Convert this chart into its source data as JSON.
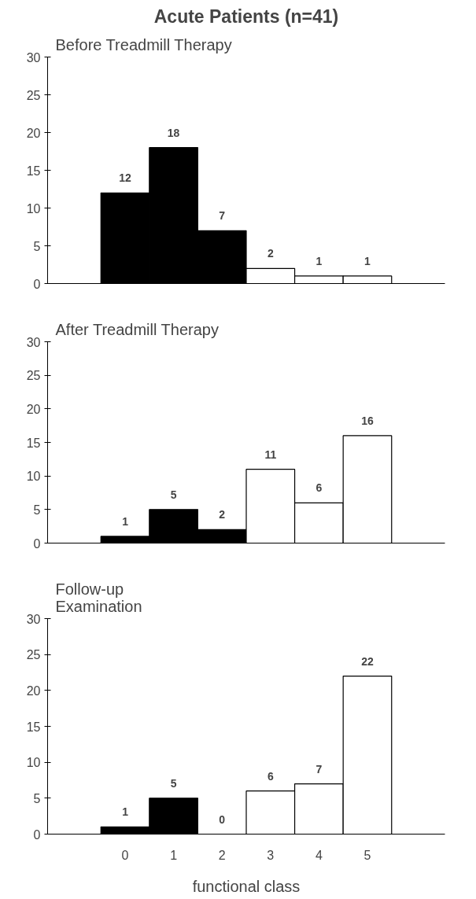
{
  "chart_data": [
    {
      "type": "bar",
      "title": "Acute Patients (n=41)",
      "subtitle": "Before Treadmill Therapy",
      "categories": [
        "0",
        "1",
        "2",
        "3",
        "4",
        "5"
      ],
      "values": [
        12,
        18,
        7,
        2,
        1,
        1
      ],
      "colors": [
        "#000000",
        "#000000",
        "#000000",
        "#ffffff",
        "#ffffff",
        "#ffffff"
      ],
      "ylim": [
        0,
        30
      ],
      "yticks": [
        0,
        5,
        10,
        15,
        20,
        25,
        30
      ],
      "data_labels": true,
      "tick_labels": "y",
      "grid": false
    },
    {
      "type": "bar",
      "title": "After Treadmill Therapy",
      "categories": [
        "0",
        "1",
        "2",
        "3",
        "4",
        "5"
      ],
      "values": [
        1,
        5,
        2,
        11,
        6,
        16
      ],
      "colors": [
        "#000000",
        "#000000",
        "#000000",
        "#ffffff",
        "#ffffff",
        "#ffffff"
      ],
      "ylim": [
        0,
        30
      ],
      "yticks": [
        0,
        5,
        10,
        15,
        20,
        25,
        30
      ],
      "data_labels": true,
      "tick_labels": "y",
      "grid": false
    },
    {
      "type": "bar",
      "title": "Follow-up\nExamination",
      "xlabel": "functional class",
      "categories": [
        "0",
        "1",
        "2",
        "3",
        "4",
        "5"
      ],
      "values": [
        1,
        5,
        0,
        6,
        7,
        22
      ],
      "colors": [
        "#000000",
        "#000000",
        "#000000",
        "#ffffff",
        "#ffffff",
        "#ffffff"
      ],
      "ylim": [
        0,
        30
      ],
      "yticks": [
        0,
        5,
        10,
        15,
        20,
        25,
        30
      ],
      "data_labels": true,
      "grid": false
    }
  ]
}
